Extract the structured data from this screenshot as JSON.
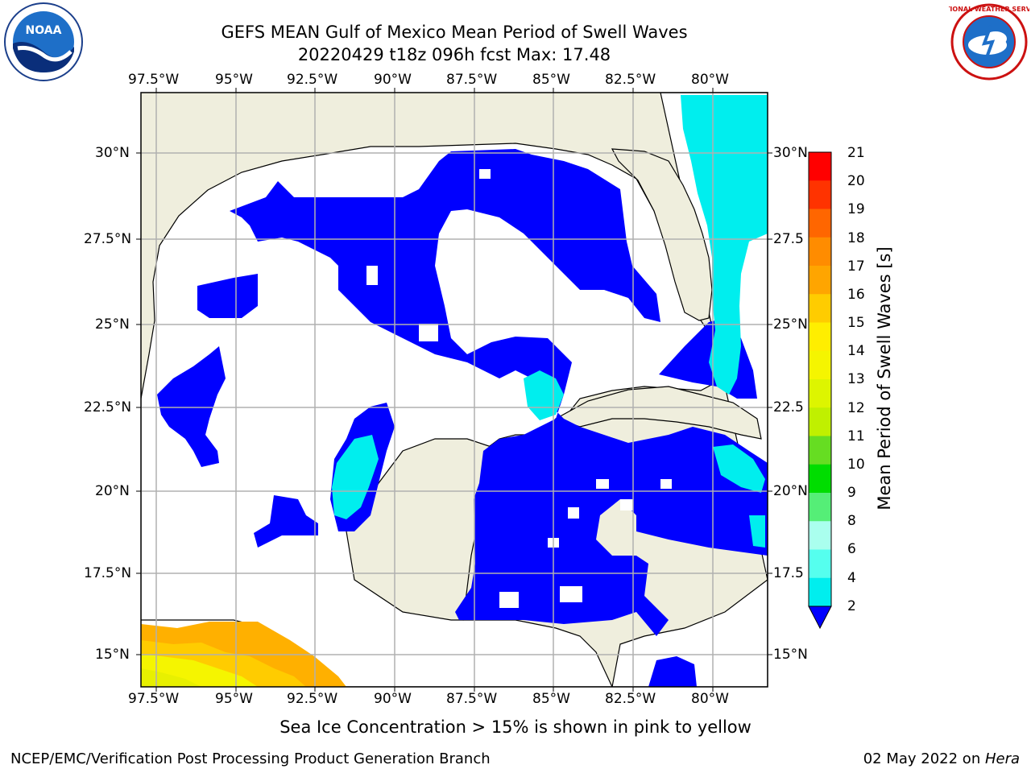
{
  "title_line1": "GEFS MEAN Gulf of Mexico Mean Period of Swell Waves",
  "title_line2": "20220429 t18z 096h fcst   Max: 17.48",
  "lon_labels": [
    "97.5°W",
    "95°W",
    "92.5°W",
    "90°W",
    "87.5°W",
    "85°W",
    "82.5°W",
    "80°W"
  ],
  "lat_labels_left": [
    "30°N",
    "27.5°N",
    "25°N",
    "22.5°N",
    "20°N",
    "17.5°N",
    "15°N"
  ],
  "lat_labels_right": [
    "30°N",
    "27.5",
    "25°N",
    "22.5",
    "20°N",
    "17.5",
    "15°N"
  ],
  "colorbar": {
    "label": "Mean Period of Swell Waves [s]",
    "ticks": [
      "21",
      "20",
      "19",
      "18",
      "17",
      "16",
      "15",
      "14",
      "13",
      "12",
      "11",
      "10",
      "9",
      "8",
      "6",
      "4",
      "2"
    ],
    "colors": [
      "#ff0000",
      "#ff3300",
      "#ff6600",
      "#ff8c00",
      "#ffa500",
      "#ffcc00",
      "#ffee00",
      "#f5f500",
      "#ddf500",
      "#c0f000",
      "#66dd22",
      "#00dd00",
      "#55ee77",
      "#aaffee",
      "#55ffee",
      "#00eeee",
      "#00aaff",
      "#0000ff"
    ]
  },
  "ice_note": "Sea Ice Concentration > 15% is shown in pink to yellow",
  "footer_left": "NCEP/EMC/Verification Post Processing Product Generation Branch",
  "footer_right_date": "02 May 2022 on ",
  "footer_right_host": "Hera",
  "logos": {
    "left": "NOAA",
    "right": "NATIONAL WEATHER SERVICE"
  },
  "colors": {
    "land": "#efeedd",
    "swell_low": "#0000ff",
    "swell_mid": "#00eeee",
    "grid": "#b0b0b0"
  }
}
